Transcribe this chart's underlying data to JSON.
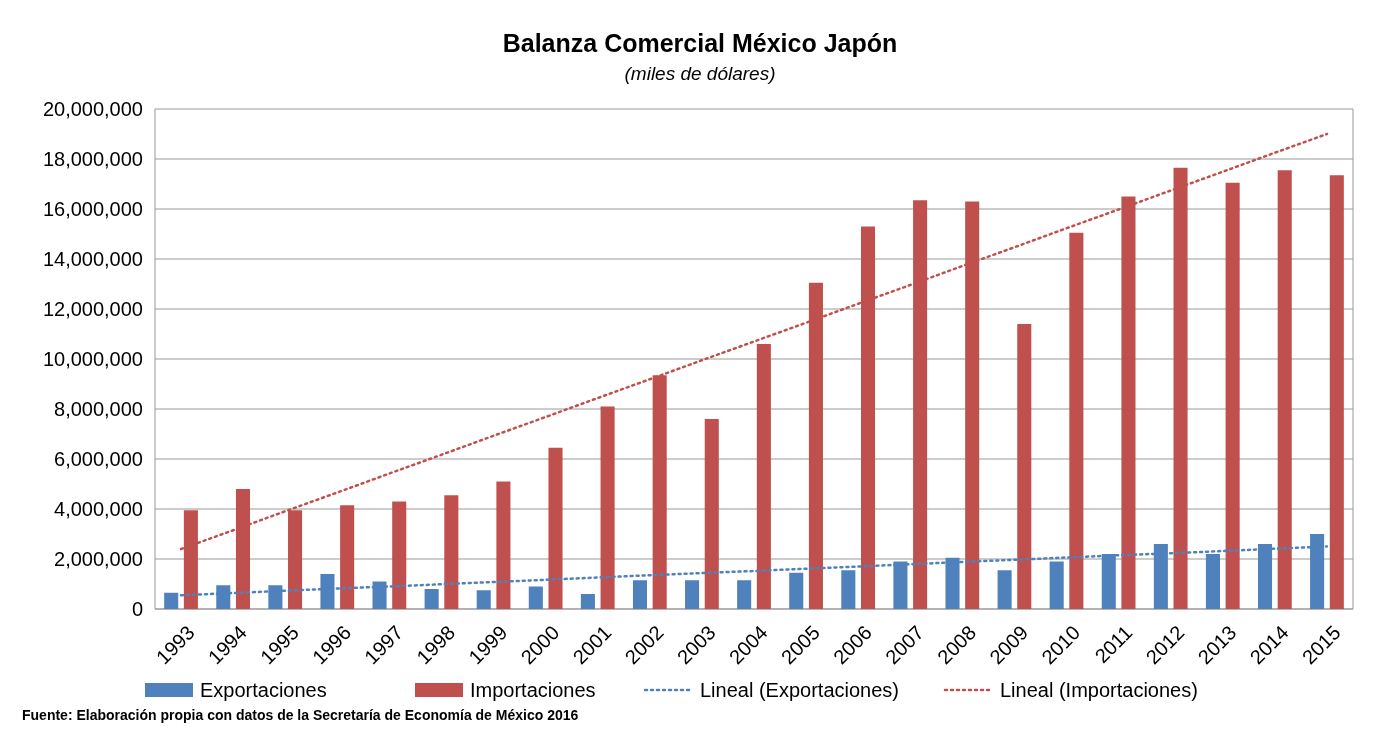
{
  "chart_data": {
    "type": "bar",
    "title": "Balanza Comercial México Japón",
    "subtitle": "(miles de dólares)",
    "categories": [
      "1993",
      "1994",
      "1995",
      "1996",
      "1997",
      "1998",
      "1999",
      "2000",
      "2001",
      "2002",
      "2003",
      "2004",
      "2005",
      "2006",
      "2007",
      "2008",
      "2009",
      "2010",
      "2011",
      "2012",
      "2013",
      "2014",
      "2015"
    ],
    "series": [
      {
        "name": "Exportaciones",
        "color": "#4f81bd",
        "values": [
          650000,
          950000,
          950000,
          1400000,
          1100000,
          800000,
          750000,
          900000,
          600000,
          1150000,
          1150000,
          1150000,
          1450000,
          1550000,
          1900000,
          2050000,
          1550000,
          1900000,
          2200000,
          2600000,
          2200000,
          2600000,
          3000000
        ]
      },
      {
        "name": "Importaciones",
        "color": "#c0504d",
        "values": [
          3950000,
          4800000,
          3950000,
          4150000,
          4300000,
          4550000,
          5100000,
          6450000,
          8100000,
          9350000,
          7600000,
          10600000,
          13050000,
          15300000,
          16350000,
          16300000,
          11400000,
          15050000,
          16500000,
          17650000,
          17050000,
          17550000,
          17350000
        ]
      },
      {
        "name": "Lineal (Exportaciones)",
        "type": "line",
        "line_style": "dotted",
        "color": "#4f81bd",
        "values": [
          550000,
          640000,
          730000,
          820000,
          900000,
          990000,
          1080000,
          1170000,
          1260000,
          1350000,
          1440000,
          1520000,
          1610000,
          1700000,
          1790000,
          1880000,
          1970000,
          2060000,
          2150000,
          2230000,
          2320000,
          2410000,
          2500000
        ]
      },
      {
        "name": "Lineal (Importaciones)",
        "type": "line",
        "line_style": "dotted",
        "color": "#c0504d",
        "values": [
          2400000,
          3150000,
          3910000,
          4660000,
          5420000,
          6170000,
          6930000,
          7680000,
          8440000,
          9190000,
          9950000,
          10700000,
          11450000,
          12210000,
          12960000,
          13720000,
          14470000,
          15230000,
          15980000,
          16740000,
          17490000,
          18250000,
          19000000
        ]
      }
    ],
    "ylim": [
      0,
      20000000
    ],
    "yticks": [
      0,
      {
        "value": 2000000,
        "label": "2,000,000"
      },
      {
        "value": 4000000,
        "label": "4,000,000"
      },
      {
        "value": 6000000,
        "label": "6,000,000"
      },
      {
        "value": 8000000,
        "label": "8,000,000"
      },
      {
        "value": 10000000,
        "label": "10,000,000"
      },
      {
        "value": 12000000,
        "label": "12,000,000"
      },
      {
        "value": 14000000,
        "label": "14,000,000"
      },
      {
        "value": 16000000,
        "label": "16,000,000"
      },
      {
        "value": 18000000,
        "label": "18,000,000"
      },
      {
        "value": 20000000,
        "label": "20,000,000"
      }
    ],
    "grid": "y",
    "legend": "bottom",
    "annotations": [
      "Fuente: Elaboración propia con datos de la Secretaría de Economía de México 2016"
    ]
  }
}
